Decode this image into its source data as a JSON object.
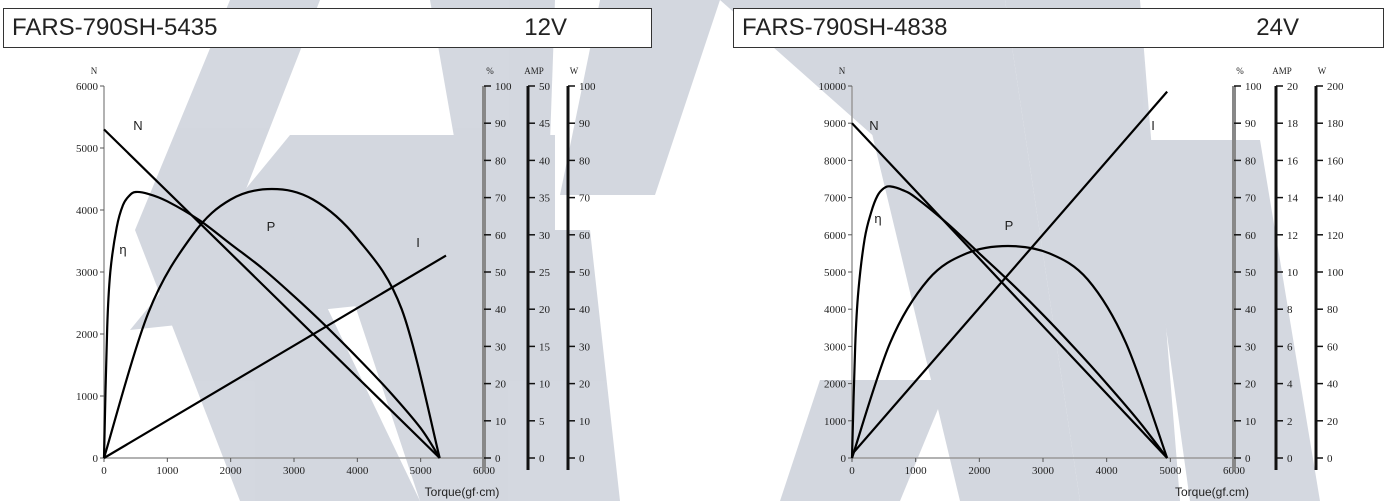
{
  "colors": {
    "watermark": "#c9ced8",
    "curve": "#000000",
    "axis": "#555555"
  },
  "watermark": "company-logo-watermark",
  "charts": [
    {
      "model": "FARS-790SH-5435",
      "voltage": "12V"
    },
    {
      "model": "FARS-790SH-4838",
      "voltage": "24V"
    }
  ],
  "chart_data": [
    {
      "type": "line",
      "title": "FARS-790SH-5435",
      "subtitle": "12V",
      "xlabel": "Torque(gf·cm)",
      "xlim": [
        0,
        6000
      ],
      "xticks": [
        "0",
        "1000",
        "2000",
        "3000",
        "4000",
        "5000",
        "6000"
      ],
      "y_axes": [
        {
          "label": "N",
          "side": "left",
          "lim": [
            0,
            6000
          ],
          "ticks": [
            "0",
            "1000",
            "2000",
            "3000",
            "4000",
            "5000",
            "6000"
          ]
        },
        {
          "label": "%",
          "side": "right",
          "lim": [
            0,
            100
          ],
          "ticks": [
            "0",
            "10",
            "20",
            "30",
            "40",
            "50",
            "60",
            "70",
            "80",
            "90",
            "100"
          ]
        },
        {
          "label": "AMP",
          "side": "right",
          "lim": [
            0,
            50
          ],
          "ticks": [
            "0",
            "5",
            "10",
            "15",
            "20",
            "25",
            "30",
            "35",
            "40",
            "45",
            "50"
          ]
        },
        {
          "label": "W",
          "side": "right",
          "lim": [
            0,
            100
          ],
          "ticks": [
            "0",
            "10",
            "20",
            "30",
            "40",
            "50",
            "60",
            "70",
            "80",
            "90",
            "100"
          ]
        }
      ],
      "series": [
        {
          "name": "N",
          "axis": "N",
          "x": [
            0,
            5300
          ],
          "values": [
            5300,
            0
          ]
        },
        {
          "name": "I",
          "axis": "AMP",
          "x": [
            0,
            5400
          ],
          "values": [
            0,
            27.2
          ]
        },
        {
          "name": "P",
          "axis": "W",
          "x": [
            0,
            700,
            1400,
            2000,
            2650,
            3300,
            4000,
            4700,
            5300
          ],
          "values": [
            0,
            39,
            60,
            69.5,
            72.3,
            69.5,
            59,
            40,
            0
          ]
        },
        {
          "name": "η",
          "axis": "%",
          "x": [
            0,
            50,
            100,
            200,
            300,
            400,
            500,
            700,
            1000,
            1500,
            2000,
            2500,
            3000,
            3500,
            4000,
            4500,
            5000,
            5300
          ],
          "values": [
            0,
            35,
            50,
            62,
            68,
            70.5,
            71.5,
            71,
            69,
            64,
            57.5,
            51,
            43.5,
            35.5,
            27,
            18,
            8,
            0
          ]
        }
      ],
      "curve_labels": [
        "N",
        "η",
        "P",
        "I"
      ],
      "grid": false,
      "legend": "none"
    },
    {
      "type": "line",
      "title": "FARS-790SH-4838",
      "subtitle": "24V",
      "xlabel": "Torque(gf.cm)",
      "xlim": [
        0,
        6000
      ],
      "xticks": [
        "0",
        "1000",
        "2000",
        "3000",
        "4000",
        "5000",
        "6000"
      ],
      "y_axes": [
        {
          "label": "N",
          "side": "left",
          "lim": [
            0,
            10000
          ],
          "ticks": [
            "0",
            "1000",
            "2000",
            "3000",
            "4000",
            "5000",
            "6000",
            "7000",
            "8000",
            "9000",
            "10000"
          ]
        },
        {
          "label": "%",
          "side": "right",
          "lim": [
            0,
            100
          ],
          "ticks": [
            "0",
            "10",
            "20",
            "30",
            "40",
            "50",
            "60",
            "70",
            "80",
            "90",
            "100"
          ]
        },
        {
          "label": "AMP",
          "side": "right",
          "lim": [
            0,
            20
          ],
          "ticks": [
            "0",
            "2",
            "4",
            "6",
            "8",
            "10",
            "12",
            "14",
            "16",
            "18",
            "20"
          ]
        },
        {
          "label": "W",
          "side": "right",
          "lim": [
            0,
            200
          ],
          "ticks": [
            "0",
            "20",
            "40",
            "60",
            "80",
            "100",
            "120",
            "140",
            "160",
            "180",
            "200"
          ]
        }
      ],
      "series": [
        {
          "name": "N",
          "axis": "N",
          "x": [
            0,
            4950
          ],
          "values": [
            9000,
            0
          ]
        },
        {
          "name": "I",
          "axis": "AMP",
          "x": [
            0,
            4950
          ],
          "values": [
            0.2,
            19.7
          ]
        },
        {
          "name": "P",
          "axis": "W",
          "x": [
            0,
            600,
            1200,
            1800,
            2450,
            3100,
            3700,
            4300,
            4950
          ],
          "values": [
            0,
            62,
            96,
            110,
            114,
            110,
            96,
            62,
            0
          ]
        },
        {
          "name": "η",
          "axis": "%",
          "x": [
            0,
            50,
            100,
            200,
            300,
            400,
            500,
            600,
            800,
            1000,
            1500,
            2000,
            2500,
            3000,
            3500,
            4000,
            4500,
            4950
          ],
          "values": [
            0,
            30,
            45,
            59,
            66,
            70.5,
            72.5,
            73,
            72,
            70,
            63,
            55,
            47,
            38.5,
            29.5,
            20,
            10,
            0
          ]
        }
      ],
      "curve_labels": [
        "N",
        "η",
        "P",
        "I"
      ],
      "grid": false,
      "legend": "none"
    }
  ]
}
